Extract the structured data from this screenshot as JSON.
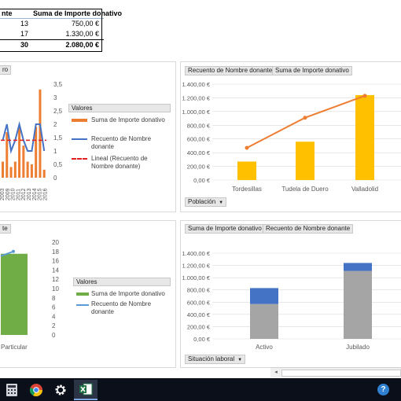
{
  "pivot": {
    "headers": [
      "nte",
      "Suma de Importe donativo"
    ],
    "rows": [
      {
        "count": "13",
        "amount": "750,00 €"
      },
      {
        "count": "17",
        "amount": "1.330,00 €"
      }
    ],
    "total": {
      "count": "30",
      "amount": "2.080,00 €"
    }
  },
  "chart1": {
    "field_button": "ro",
    "legend_title": "Valores",
    "legend": [
      "Suma de Importe donativo",
      "Recuento de Nombre donante",
      "Lineal (Recuento de Nombre donante)"
    ],
    "colors": {
      "bars": "#ed7d31",
      "line": "#4472c4",
      "trend": "#e02020"
    }
  },
  "chart2": {
    "field_buttons": [
      "Recuento de Nombre donante",
      "Suma de Importe donativo"
    ],
    "axis_button": "Población",
    "colors": {
      "bars": "#ffc000",
      "line": "#ed7d31"
    }
  },
  "chart3": {
    "field_button": "te",
    "legend_title": "Valores",
    "legend": [
      "Suma de Importe donativo",
      "Recuento de Nombre donante"
    ],
    "colors": {
      "bars": "#70ad47",
      "line": "#5b9bd5"
    }
  },
  "chart4": {
    "field_buttons": [
      "Suma de Importe donativo",
      "Recuento de Nombre donante"
    ],
    "axis_button": "Situación laboral",
    "colors": {
      "gray": "#a5a5a5",
      "blue": "#4472c4"
    }
  },
  "chart_data": [
    {
      "type": "bar",
      "title": "",
      "categories": [
        "",
        "2003",
        "",
        "",
        "",
        "2010",
        "",
        "2013",
        "",
        "2015",
        "2016"
      ],
      "x_labels": [
        "2003",
        "2009",
        "2010",
        "2011",
        "2012",
        "2013",
        "2014",
        "2015",
        "2016"
      ],
      "y2_ticks": [
        "3,5",
        "3",
        "2,5",
        "2",
        "1,5",
        "1",
        "0,5",
        "0"
      ],
      "y2lim": [
        0,
        3.5
      ],
      "series": [
        {
          "name": "Suma de Importe donativo",
          "values": [
            60,
            170,
            40,
            60,
            190,
            120,
            60,
            50,
            190,
            330,
            30
          ]
        },
        {
          "name": "Recuento de Nombre donante",
          "values": [
            1.4,
            2.0,
            1.0,
            1.4,
            2.0,
            1.4,
            1.0,
            1.0,
            2.0,
            2.0,
            1.0
          ]
        },
        {
          "name": "Lineal (Recuento de Nombre donante)",
          "values": [
            1.4,
            1.4,
            1.4,
            1.4,
            1.4,
            1.4,
            1.4,
            1.4,
            1.4,
            1.4,
            1.4
          ]
        }
      ]
    },
    {
      "type": "bar",
      "title": "",
      "categories": [
        "Tordesillas",
        "Tudela de Duero",
        "Valladolid"
      ],
      "y_ticks": [
        "1.400,00 €",
        "1.200,00 €",
        "1.000,00 €",
        "800,00 €",
        "600,00 €",
        "400,00 €",
        "200,00 €",
        "0,00 €"
      ],
      "ylim": [
        0,
        1400
      ],
      "series": [
        {
          "name": "Suma de Importe donativo",
          "values": [
            270,
            560,
            1240
          ]
        },
        {
          "name": "Recuento de Nombre donante",
          "values": [
            470,
            910,
            1230
          ]
        }
      ]
    },
    {
      "type": "bar",
      "title": "",
      "categories": [
        "Particular"
      ],
      "y2_ticks": [
        "20",
        "18",
        "16",
        "14",
        "12",
        "10",
        "8",
        "6",
        "4",
        "2",
        "0"
      ],
      "y2lim": [
        0,
        20
      ],
      "series": [
        {
          "name": "Suma de Importe donativo",
          "values": [
            17.5
          ]
        },
        {
          "name": "Recuento de Nombre donante",
          "values": [
            18
          ]
        }
      ]
    },
    {
      "type": "bar",
      "title": "",
      "categories": [
        "Activo",
        "Jubilado"
      ],
      "y_ticks": [
        "1.400,00 €",
        "1.200,00 €",
        "1.000,00 €",
        "800,00 €",
        "600,00 €",
        "400,00 €",
        "200,00 €",
        "0,00 €"
      ],
      "ylim": [
        0,
        1400
      ],
      "series": [
        {
          "name": "Suma de Importe donativo",
          "values": [
            570,
            1110
          ]
        },
        {
          "name": "Recuento de Nombre donante",
          "values": [
            260,
            130
          ]
        }
      ]
    }
  ],
  "taskbar": {
    "items": [
      "calculator-icon",
      "chrome-icon",
      "settings-icon",
      "excel-icon"
    ],
    "help": "?"
  }
}
